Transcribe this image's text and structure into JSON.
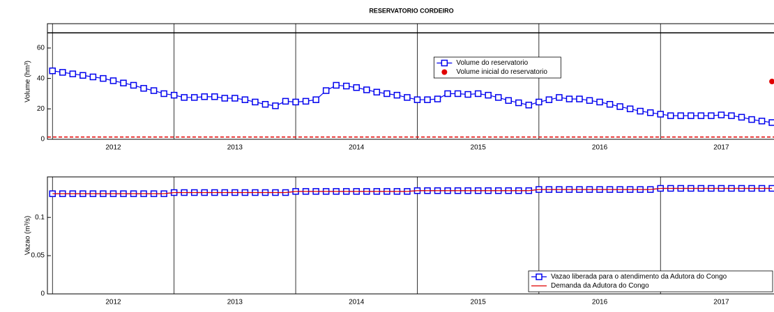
{
  "chart_data": [
    {
      "type": "line",
      "title": "RESERVATORIO CORDEIRO",
      "ylabel": "Volume (hm³)",
      "x": [
        0,
        1,
        2,
        3,
        4,
        5,
        6,
        7,
        8,
        9,
        10,
        11,
        12,
        13,
        14,
        15,
        16,
        17,
        18,
        19,
        20,
        21,
        22,
        23,
        24,
        25,
        26,
        27,
        28,
        29,
        30,
        31,
        32,
        33,
        34,
        35,
        36,
        37,
        38,
        39,
        40,
        41,
        42,
        43,
        44,
        45,
        46,
        47,
        48,
        49,
        50,
        51,
        52,
        53,
        54,
        55,
        56,
        57,
        58,
        59,
        60,
        61,
        62,
        63,
        64,
        65,
        66,
        67,
        68,
        69,
        70,
        71
      ],
      "xlim": [
        -0.5,
        71.2
      ],
      "ylim": [
        0,
        76
      ],
      "xticks": [
        {
          "value": 6,
          "label": "2012"
        },
        {
          "value": 18,
          "label": "2013"
        },
        {
          "value": 30,
          "label": "2014"
        },
        {
          "value": 42,
          "label": "2015"
        },
        {
          "value": 54,
          "label": "2016"
        },
        {
          "value": 66,
          "label": "2017"
        }
      ],
      "yticks": [
        0,
        20,
        40,
        60
      ],
      "xgrid": [
        0,
        12,
        24,
        36,
        48,
        60
      ],
      "reference_lines": [
        {
          "value": 70,
          "color": "#000000",
          "dash": false
        },
        {
          "value": 1.5,
          "color": "#e00000",
          "dash": true
        }
      ],
      "legend": "upper center",
      "series": [
        {
          "name": "Volume do reservatorio",
          "color": "#0000ee",
          "marker": "square",
          "line": true,
          "values": [
            45,
            44,
            43,
            42,
            41,
            40,
            38.5,
            37,
            35.5,
            33.5,
            32,
            30,
            29,
            27.5,
            27.5,
            28,
            28,
            27,
            27,
            26,
            24.5,
            23,
            22,
            25,
            24.5,
            25,
            26,
            32,
            35.5,
            35,
            34,
            32.5,
            31,
            30,
            29,
            27.5,
            26,
            26,
            26.5,
            30,
            30,
            29.5,
            30,
            29,
            27.5,
            25.5,
            24,
            22.5,
            24.5,
            26,
            27.5,
            26.5,
            26.5,
            25.5,
            24.5,
            23,
            21.5,
            20,
            18.5,
            17.5,
            16.5,
            15.5,
            15.5,
            15.5,
            15.5,
            15.5,
            16,
            15.5,
            14.5,
            13,
            12,
            11
          ]
        },
        {
          "name": "Volume inicial do reservatorio",
          "color": "#e00000",
          "marker": "circle",
          "line": false,
          "x": [
            71
          ],
          "values": [
            38
          ]
        }
      ]
    },
    {
      "type": "line",
      "ylabel": "Vazao (m³/s)",
      "x": [
        0,
        1,
        2,
        3,
        4,
        5,
        6,
        7,
        8,
        9,
        10,
        11,
        12,
        13,
        14,
        15,
        16,
        17,
        18,
        19,
        20,
        21,
        22,
        23,
        24,
        25,
        26,
        27,
        28,
        29,
        30,
        31,
        32,
        33,
        34,
        35,
        36,
        37,
        38,
        39,
        40,
        41,
        42,
        43,
        44,
        45,
        46,
        47,
        48,
        49,
        50,
        51,
        52,
        53,
        54,
        55,
        56,
        57,
        58,
        59,
        60,
        61,
        62,
        63,
        64,
        65,
        66,
        67,
        68,
        69,
        70,
        71
      ],
      "xlim": [
        -0.5,
        71.2
      ],
      "ylim": [
        0,
        0.153
      ],
      "xticks": [
        {
          "value": 6,
          "label": "2012"
        },
        {
          "value": 18,
          "label": "2013"
        },
        {
          "value": 30,
          "label": "2014"
        },
        {
          "value": 42,
          "label": "2015"
        },
        {
          "value": 54,
          "label": "2016"
        },
        {
          "value": 66,
          "label": "2017"
        }
      ],
      "yticks": [
        0,
        0.05,
        0.1
      ],
      "xgrid": [
        0,
        12,
        24,
        36,
        48,
        60
      ],
      "legend": "lower right",
      "series": [
        {
          "name": "Vazao liberada para o atendimento da Adutora do Congo",
          "color": "#0000ee",
          "marker": "square",
          "line": true,
          "values": [
            0.131,
            0.131,
            0.131,
            0.131,
            0.131,
            0.131,
            0.131,
            0.131,
            0.131,
            0.131,
            0.131,
            0.131,
            0.1325,
            0.1325,
            0.1325,
            0.1325,
            0.1325,
            0.1325,
            0.1325,
            0.1325,
            0.1325,
            0.1325,
            0.1325,
            0.1325,
            0.134,
            0.134,
            0.134,
            0.134,
            0.134,
            0.134,
            0.134,
            0.134,
            0.134,
            0.134,
            0.134,
            0.134,
            0.135,
            0.135,
            0.135,
            0.135,
            0.135,
            0.135,
            0.135,
            0.135,
            0.135,
            0.135,
            0.135,
            0.135,
            0.1365,
            0.1365,
            0.1365,
            0.1365,
            0.1365,
            0.1365,
            0.1365,
            0.1365,
            0.1365,
            0.1365,
            0.1365,
            0.1365,
            0.138,
            0.138,
            0.138,
            0.138,
            0.138,
            0.138,
            0.138,
            0.138,
            0.138,
            0.138,
            0.138,
            0.138
          ]
        },
        {
          "name": "Demanda da Adutora do Congo",
          "color": "#e00000",
          "marker": "none",
          "line": true,
          "values": [
            0.131,
            0.131,
            0.131,
            0.131,
            0.131,
            0.131,
            0.131,
            0.131,
            0.131,
            0.131,
            0.131,
            0.131,
            0.1325,
            0.1325,
            0.1325,
            0.1325,
            0.1325,
            0.1325,
            0.1325,
            0.1325,
            0.1325,
            0.1325,
            0.1325,
            0.1325,
            0.134,
            0.134,
            0.134,
            0.134,
            0.134,
            0.134,
            0.134,
            0.134,
            0.134,
            0.134,
            0.134,
            0.134,
            0.135,
            0.135,
            0.135,
            0.135,
            0.135,
            0.135,
            0.135,
            0.135,
            0.135,
            0.135,
            0.135,
            0.135,
            0.1365,
            0.1365,
            0.1365,
            0.1365,
            0.1365,
            0.1365,
            0.1365,
            0.1365,
            0.1365,
            0.1365,
            0.1365,
            0.1365,
            0.138,
            0.138,
            0.138,
            0.138,
            0.138,
            0.138,
            0.138,
            0.138,
            0.138,
            0.138,
            0.138,
            0.138
          ]
        }
      ]
    }
  ]
}
